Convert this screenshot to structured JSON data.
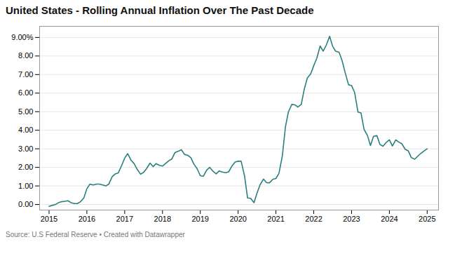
{
  "chart_data": {
    "type": "line",
    "title": "United States - Rolling Annual Inflation Over The Past Decade",
    "caption": "Source: U.S Federal Reserve • Created with Datawrapper",
    "color": "#2a7f7f",
    "grid": true,
    "xlim": [
      2014.75,
      2025.3
    ],
    "xticks": [
      2015,
      2016,
      2017,
      2018,
      2019,
      2020,
      2021,
      2022,
      2023,
      2024,
      2025
    ],
    "ylim": [
      -0.3,
      9.6
    ],
    "yticks": [
      {
        "value": 0.0,
        "label": "0.00"
      },
      {
        "value": 1.0,
        "label": "1.00"
      },
      {
        "value": 2.0,
        "label": "2.00"
      },
      {
        "value": 3.0,
        "label": "3.00"
      },
      {
        "value": 4.0,
        "label": "4.00"
      },
      {
        "value": 5.0,
        "label": "5.00"
      },
      {
        "value": 6.0,
        "label": "6.00"
      },
      {
        "value": 7.0,
        "label": "7.00"
      },
      {
        "value": 8.0,
        "label": "8.00"
      },
      {
        "value": 9.0,
        "label": "9.00%"
      }
    ],
    "x": [
      2015.0,
      2015.08,
      2015.17,
      2015.25,
      2015.33,
      2015.42,
      2015.5,
      2015.58,
      2015.67,
      2015.75,
      2015.83,
      2015.92,
      2016.0,
      2016.08,
      2016.17,
      2016.25,
      2016.33,
      2016.42,
      2016.5,
      2016.58,
      2016.67,
      2016.75,
      2016.83,
      2016.92,
      2017.0,
      2017.08,
      2017.17,
      2017.25,
      2017.33,
      2017.42,
      2017.5,
      2017.58,
      2017.67,
      2017.75,
      2017.83,
      2017.92,
      2018.0,
      2018.08,
      2018.17,
      2018.25,
      2018.33,
      2018.42,
      2018.5,
      2018.58,
      2018.67,
      2018.75,
      2018.83,
      2018.92,
      2019.0,
      2019.08,
      2019.17,
      2019.25,
      2019.33,
      2019.42,
      2019.5,
      2019.58,
      2019.67,
      2019.75,
      2019.83,
      2019.92,
      2020.0,
      2020.08,
      2020.17,
      2020.25,
      2020.33,
      2020.42,
      2020.5,
      2020.58,
      2020.67,
      2020.75,
      2020.83,
      2020.92,
      2021.0,
      2021.08,
      2021.17,
      2021.25,
      2021.33,
      2021.42,
      2021.5,
      2021.58,
      2021.67,
      2021.75,
      2021.83,
      2021.92,
      2022.0,
      2022.08,
      2022.17,
      2022.25,
      2022.33,
      2022.42,
      2022.5,
      2022.58,
      2022.67,
      2022.75,
      2022.83,
      2022.92,
      2023.0,
      2023.08,
      2023.17,
      2023.25,
      2023.33,
      2023.42,
      2023.5,
      2023.58,
      2023.67,
      2023.75,
      2023.83,
      2023.92,
      2024.0,
      2024.08,
      2024.17,
      2024.25,
      2024.33,
      2024.42,
      2024.5,
      2024.58,
      2024.67,
      2024.75,
      2024.83,
      2024.92,
      2025.0
    ],
    "values": [
      -0.1,
      -0.05,
      0.0,
      0.1,
      0.15,
      0.17,
      0.2,
      0.1,
      0.05,
      0.05,
      0.15,
      0.35,
      0.85,
      1.1,
      1.05,
      1.1,
      1.1,
      1.05,
      1.0,
      1.1,
      1.5,
      1.65,
      1.7,
      2.1,
      2.5,
      2.74,
      2.38,
      2.2,
      1.9,
      1.63,
      1.73,
      1.94,
      2.23,
      2.04,
      2.2,
      2.11,
      2.07,
      2.21,
      2.36,
      2.46,
      2.8,
      2.87,
      2.95,
      2.7,
      2.65,
      2.52,
      2.18,
      1.91,
      1.55,
      1.52,
      1.86,
      2.0,
      1.8,
      1.65,
      1.81,
      1.75,
      1.71,
      1.76,
      2.05,
      2.29,
      2.33,
      2.33,
      1.54,
      0.35,
      0.33,
      0.1,
      0.62,
      1.06,
      1.37,
      1.18,
      1.17,
      1.36,
      1.4,
      1.68,
      2.62,
      4.16,
      4.99,
      5.39,
      5.37,
      5.25,
      5.39,
      6.22,
      6.81,
      7.04,
      7.48,
      7.87,
      8.54,
      8.26,
      8.58,
      9.06,
      8.52,
      8.26,
      8.2,
      7.75,
      7.11,
      6.45,
      6.41,
      6.04,
      4.98,
      4.93,
      4.05,
      3.72,
      3.18,
      3.67,
      3.71,
      3.24,
      3.14,
      3.35,
      3.48,
      3.15,
      3.48,
      3.36,
      3.27,
      2.97,
      2.89,
      2.53,
      2.44,
      2.6,
      2.75,
      2.89,
      3.0
    ]
  }
}
